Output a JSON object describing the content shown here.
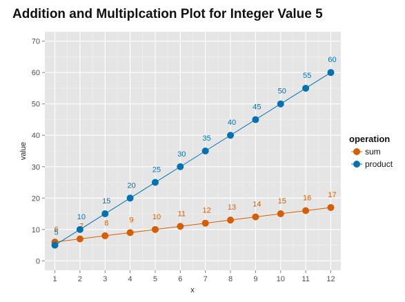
{
  "chart_data": {
    "type": "line",
    "title": "Addition and Multiplcation Plot for Integer Value 5",
    "xlabel": "x",
    "ylabel": "value",
    "x": [
      1,
      2,
      3,
      4,
      5,
      6,
      7,
      8,
      9,
      10,
      11,
      12
    ],
    "xlim": [
      0.6,
      12.4
    ],
    "ylim": [
      -3,
      73
    ],
    "yticks": [
      0,
      10,
      20,
      30,
      40,
      50,
      60,
      70
    ],
    "grid": true,
    "legend": {
      "title": "operation",
      "position": "right",
      "entries": [
        "sum",
        "product"
      ]
    },
    "series": [
      {
        "name": "sum",
        "color": "#d55e00",
        "values": [
          6,
          7,
          8,
          9,
          10,
          11,
          12,
          13,
          14,
          15,
          16,
          17
        ]
      },
      {
        "name": "product",
        "color": "#0072b2",
        "values": [
          5,
          10,
          15,
          20,
          25,
          30,
          35,
          40,
          45,
          50,
          55,
          60
        ]
      }
    ],
    "panel_background": "#e5e5e5",
    "grid_color": "#ffffff"
  }
}
